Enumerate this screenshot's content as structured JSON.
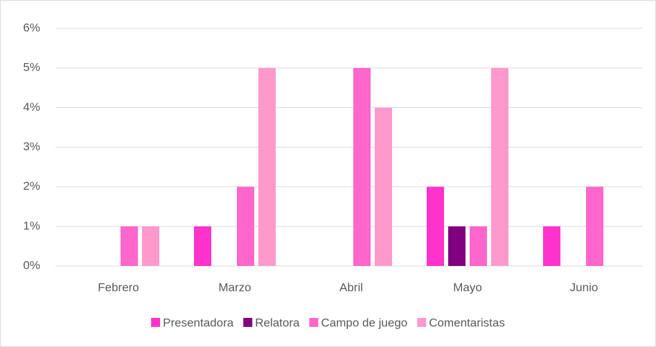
{
  "chart_data": {
    "type": "bar",
    "categories": [
      "Febrero",
      "Marzo",
      "Abril",
      "Mayo",
      "Junio"
    ],
    "series": [
      {
        "name": "Presentadora",
        "color": "#ff33cc",
        "values": [
          0,
          1,
          0,
          2,
          1
        ]
      },
      {
        "name": "Relatora",
        "color": "#800080",
        "values": [
          0,
          0,
          0,
          1,
          0
        ]
      },
      {
        "name": "Campo de juego",
        "color": "#ff66cc",
        "values": [
          1,
          2,
          5,
          1,
          2
        ]
      },
      {
        "name": "Comentaristas",
        "color": "#ff99cc",
        "values": [
          1,
          5,
          4,
          5,
          0
        ]
      }
    ],
    "ylim": [
      0,
      6
    ],
    "yticks": [
      {
        "value": 0,
        "label": "0%"
      },
      {
        "value": 1,
        "label": "1%"
      },
      {
        "value": 2,
        "label": "2%"
      },
      {
        "value": 3,
        "label": "3%"
      },
      {
        "value": 4,
        "label": "4%"
      },
      {
        "value": 5,
        "label": "5%"
      },
      {
        "value": 6,
        "label": "6%"
      }
    ],
    "grid": true,
    "legend": "bottom"
  }
}
